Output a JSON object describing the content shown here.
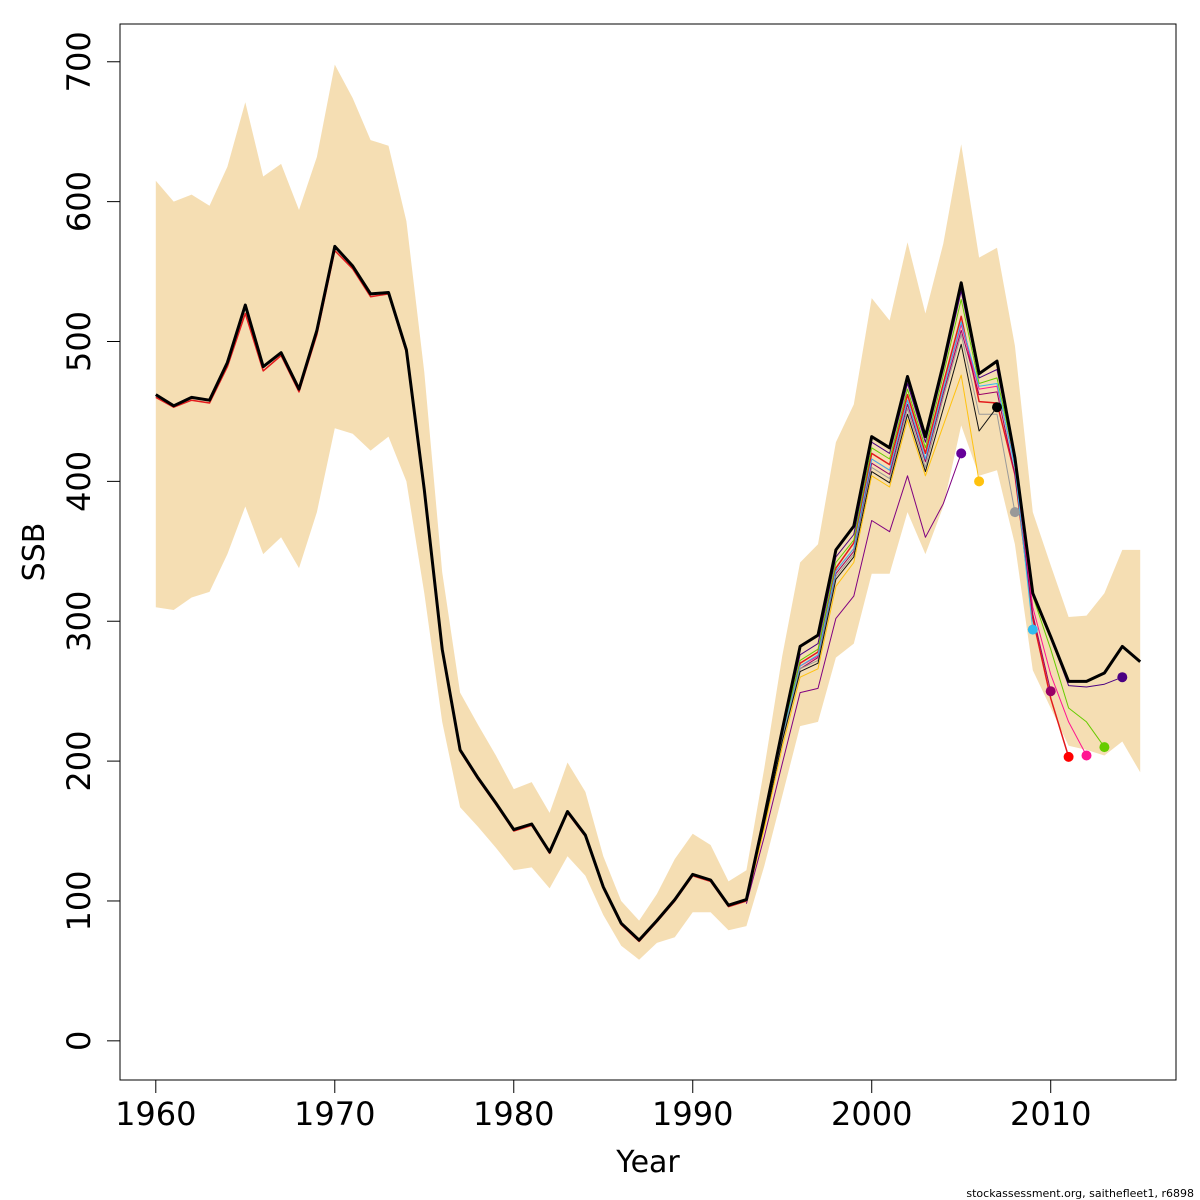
{
  "chart_data": {
    "type": "line",
    "title": "",
    "xlabel": "Year",
    "ylabel": "SSB",
    "xlim": [
      1958,
      2017
    ],
    "ylim": [
      -28,
      727
    ],
    "x_ticks": [
      1960,
      1970,
      1980,
      1990,
      2000,
      2010
    ],
    "y_ticks": [
      0,
      100,
      200,
      300,
      400,
      500,
      600,
      700
    ],
    "grid": false,
    "legend": "none",
    "footnote": "stockassessment.org, saithefleet1, r6898",
    "band_color": "#f5deb3",
    "band": {
      "years": [
        1960,
        1961,
        1962,
        1963,
        1964,
        1965,
        1966,
        1967,
        1968,
        1969,
        1970,
        1971,
        1972,
        1973,
        1974,
        1975,
        1976,
        1977,
        1978,
        1979,
        1980,
        1981,
        1982,
        1983,
        1984,
        1985,
        1986,
        1987,
        1988,
        1989,
        1990,
        1991,
        1992,
        1993,
        1994,
        1995,
        1996,
        1997,
        1998,
        1999,
        2000,
        2001,
        2002,
        2003,
        2004,
        2005,
        2006,
        2007,
        2008,
        2009,
        2010,
        2011,
        2012,
        2013,
        2014,
        2015
      ],
      "upper": [
        615,
        600,
        605,
        597,
        625,
        671,
        618,
        627,
        594,
        632,
        698,
        674,
        644,
        640,
        586,
        478,
        335,
        249,
        226,
        204,
        180,
        185,
        163,
        199,
        178,
        132,
        100,
        86,
        105,
        130,
        148,
        140,
        114,
        122,
        195,
        275,
        342,
        355,
        428,
        455,
        531,
        515,
        571,
        520,
        570,
        641,
        560,
        567,
        497,
        378,
        340,
        303,
        304,
        320,
        351,
        351
      ],
      "lower": [
        310,
        308,
        317,
        321,
        348,
        382,
        348,
        360,
        338,
        378,
        438,
        434,
        422,
        432,
        400,
        320,
        228,
        167,
        153,
        138,
        122,
        124,
        109,
        132,
        118,
        90,
        68,
        58,
        70,
        74,
        92,
        92,
        79,
        82,
        125,
        175,
        225,
        228,
        274,
        284,
        334,
        334,
        378,
        348,
        382,
        440,
        404,
        408,
        355,
        265,
        238,
        211,
        208,
        204,
        214,
        192
      ]
    },
    "series": [
      {
        "color": "#000000",
        "width": 3,
        "x": [
          1960,
          1961,
          1962,
          1963,
          1964,
          1965,
          1966,
          1967,
          1968,
          1969,
          1970,
          1971,
          1972,
          1973,
          1974,
          1975,
          1976,
          1977,
          1978,
          1979,
          1980,
          1981,
          1982,
          1983,
          1984,
          1985,
          1986,
          1987,
          1988,
          1989,
          1990,
          1991,
          1992,
          1993,
          1994,
          1995,
          1996,
          1997,
          1998,
          1999,
          2000,
          2001,
          2002,
          2003,
          2004,
          2005,
          2006,
          2007,
          2008,
          2009,
          2010,
          2011,
          2012,
          2013,
          2014,
          2015
        ],
        "y": [
          462,
          454,
          460,
          458,
          485,
          526,
          482,
          492,
          466,
          508,
          568,
          554,
          534,
          535,
          494,
          394,
          280,
          208,
          188,
          170,
          151,
          155,
          135,
          164,
          147,
          110,
          84,
          72,
          86,
          101,
          119,
          115,
          97,
          101,
          160,
          222,
          282,
          290,
          351,
          368,
          432,
          424,
          475,
          432,
          484,
          542,
          477,
          486,
          417,
          320,
          289,
          257,
          257,
          263,
          282,
          271
        ]
      },
      {
        "color": "#e31a1c",
        "width": 1.5,
        "x": [
          1960,
          1961,
          1962,
          1963,
          1964,
          1965,
          1966,
          1967,
          1968,
          1969,
          1970,
          1971,
          1972,
          1973,
          1974,
          1975,
          1976,
          1977,
          1978,
          1979,
          1980,
          1981,
          1982,
          1983,
          1984,
          1985,
          1986,
          1987,
          1988,
          1989,
          1990,
          1991,
          1992,
          1993,
          1994,
          1995,
          1996,
          1997,
          1998,
          1999,
          2000,
          2001,
          2002,
          2003,
          2004,
          2005,
          2006,
          2007,
          2008,
          2009,
          2010,
          2011
        ],
        "y": [
          460,
          453,
          458,
          456,
          482,
          520,
          479,
          490,
          464,
          505,
          565,
          552,
          532,
          534,
          492,
          392,
          279,
          207,
          187,
          169,
          150,
          154,
          134,
          163,
          146,
          109,
          83,
          71,
          85,
          100,
          118,
          114,
          96,
          100,
          158,
          219,
          270,
          278,
          338,
          356,
          420,
          412,
          462,
          420,
          470,
          518,
          457,
          456,
          405,
          302,
          245,
          203
        ]
      },
      {
        "color": "#ff1493",
        "width": 1,
        "x": [
          1993,
          1994,
          1995,
          1996,
          1997,
          1998,
          1999,
          2000,
          2001,
          2002,
          2003,
          2004,
          2005,
          2006,
          2007,
          2008,
          2009,
          2010,
          2011,
          2012
        ],
        "y": [
          100,
          158,
          218,
          268,
          275,
          336,
          352,
          416,
          408,
          458,
          416,
          466,
          512,
          466,
          468,
          412,
          310,
          262,
          228,
          204
        ]
      },
      {
        "color": "#66cc00",
        "width": 1,
        "x": [
          1993,
          1994,
          1995,
          1996,
          1997,
          1998,
          1999,
          2000,
          2001,
          2002,
          2003,
          2004,
          2005,
          2006,
          2007,
          2008,
          2009,
          2010,
          2011,
          2012,
          2013
        ],
        "y": [
          100,
          160,
          220,
          272,
          280,
          342,
          358,
          424,
          416,
          466,
          424,
          476,
          530,
          470,
          474,
          415,
          318,
          280,
          238,
          228,
          210
        ]
      },
      {
        "color": "#4b0082",
        "width": 1,
        "x": [
          1993,
          1994,
          1995,
          1996,
          1997,
          1998,
          1999,
          2000,
          2001,
          2002,
          2003,
          2004,
          2005,
          2006,
          2007,
          2008,
          2009,
          2010,
          2011,
          2012,
          2013,
          2014
        ],
        "y": [
          101,
          161,
          222,
          276,
          284,
          346,
          362,
          428,
          420,
          470,
          428,
          480,
          536,
          474,
          480,
          416,
          320,
          288,
          254,
          253,
          255,
          260
        ]
      },
      {
        "color": "#990066",
        "width": 1,
        "x": [
          1993,
          1994,
          1995,
          1996,
          1997,
          1998,
          1999,
          2000,
          2001,
          2002,
          2003,
          2004,
          2005,
          2006,
          2007,
          2008,
          2009,
          2010
        ],
        "y": [
          100,
          157,
          217,
          266,
          274,
          334,
          350,
          413,
          405,
          455,
          414,
          463,
          508,
          462,
          464,
          405,
          305,
          250
        ]
      },
      {
        "color": "#33bbee",
        "width": 1,
        "x": [
          1993,
          1994,
          1995,
          1996,
          1997,
          1998,
          1999,
          2000,
          2001,
          2002,
          2003,
          2004,
          2005,
          2006,
          2007,
          2008,
          2009
        ],
        "y": [
          100,
          158,
          218,
          268,
          276,
          336,
          352,
          416,
          408,
          458,
          416,
          466,
          514,
          468,
          470,
          410,
          294
        ]
      },
      {
        "color": "#999999",
        "width": 1,
        "x": [
          1993,
          1994,
          1995,
          1996,
          1997,
          1998,
          1999,
          2000,
          2001,
          2002,
          2003,
          2004,
          2005,
          2006,
          2007,
          2008
        ],
        "y": [
          100,
          156,
          216,
          266,
          272,
          332,
          348,
          410,
          402,
          452,
          410,
          460,
          505,
          448,
          448,
          378
        ]
      },
      {
        "color": "#111111",
        "width": 1,
        "x": [
          1993,
          1994,
          1995,
          1996,
          1997,
          1998,
          1999,
          2000,
          2001,
          2002,
          2003,
          2004,
          2005,
          2006,
          2007
        ],
        "y": [
          99,
          154,
          214,
          264,
          270,
          330,
          346,
          407,
          399,
          448,
          407,
          452,
          498,
          436,
          453
        ]
      },
      {
        "color": "#ffc20e",
        "width": 1,
        "x": [
          1993,
          1994,
          1995,
          1996,
          1997,
          1998,
          1999,
          2000,
          2001,
          2002,
          2003,
          2004,
          2005,
          2006
        ],
        "y": [
          99,
          152,
          210,
          260,
          266,
          325,
          342,
          404,
          396,
          444,
          404,
          440,
          476,
          400
        ]
      },
      {
        "color": "#800080",
        "width": 1,
        "x": [
          1993,
          1994,
          1995,
          1996,
          1997,
          1998,
          1999,
          2000,
          2001,
          2002,
          2003,
          2004,
          2005
        ],
        "y": [
          98,
          146,
          198,
          249,
          252,
          302,
          318,
          372,
          364,
          404,
          360,
          384,
          420
        ]
      }
    ],
    "endpoints": [
      {
        "x": 2005,
        "y": 420,
        "color": "#660099"
      },
      {
        "x": 2006,
        "y": 400,
        "color": "#ffc20e"
      },
      {
        "x": 2007,
        "y": 453,
        "color": "#000000"
      },
      {
        "x": 2008,
        "y": 378,
        "color": "#999999"
      },
      {
        "x": 2009,
        "y": 294,
        "color": "#33bbee"
      },
      {
        "x": 2010,
        "y": 250,
        "color": "#990066"
      },
      {
        "x": 2011,
        "y": 203,
        "color": "#ff0000"
      },
      {
        "x": 2012,
        "y": 204,
        "color": "#ff1493"
      },
      {
        "x": 2013,
        "y": 210,
        "color": "#66cc00"
      },
      {
        "x": 2014,
        "y": 260,
        "color": "#4b0082"
      }
    ]
  }
}
